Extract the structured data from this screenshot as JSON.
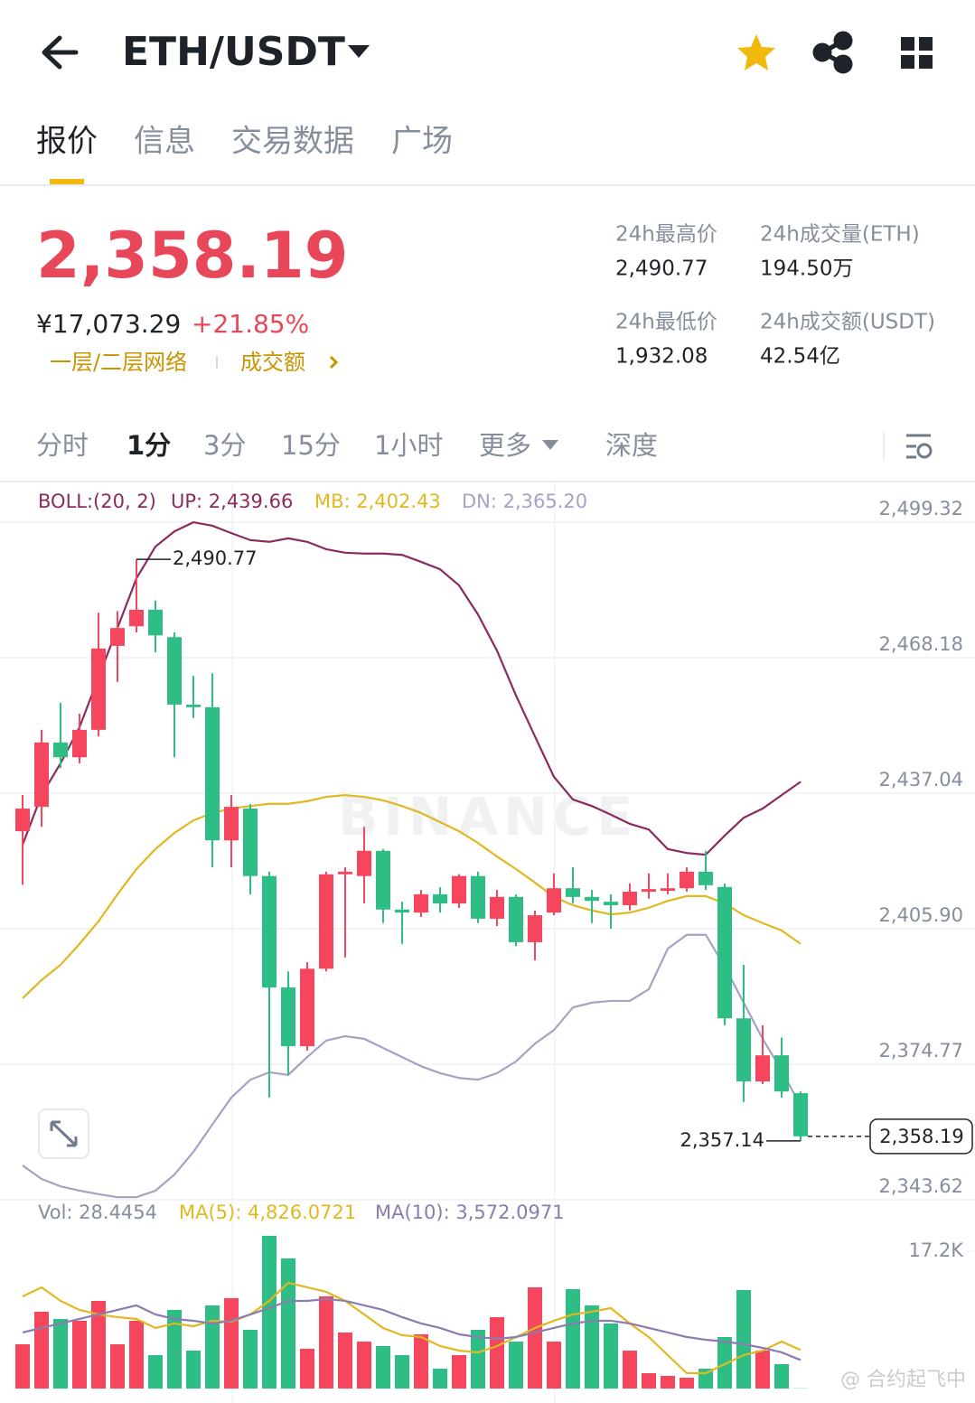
{
  "header": {
    "symbol": "ETH/USDT"
  },
  "tabs": {
    "items": [
      "报价",
      "信息",
      "交易数据",
      "广场"
    ],
    "active": 0
  },
  "quote": {
    "price": "2,358.19",
    "cny": "¥17,073.29",
    "change": "+21.85%",
    "links": [
      "一层/二层网络",
      "成交额"
    ]
  },
  "stats": [
    {
      "label": "24h最高价",
      "value": "2,490.77"
    },
    {
      "label": "24h成交量(ETH)",
      "value": "194.50万"
    },
    {
      "label": "24h最低价",
      "value": "1,932.08"
    },
    {
      "label": "24h成交额(USDT)",
      "value": "42.54亿"
    }
  ],
  "intervals": {
    "items": [
      "分时",
      "1分",
      "3分",
      "15分",
      "1小时",
      "更多",
      "深度"
    ],
    "active": 1
  },
  "watermark": "@ 合约起飞中",
  "chart_data": {
    "type": "candlestick",
    "indicator": "BOLL:(20, 2)",
    "brand": "BINANCE",
    "up_color": "#f6465d",
    "down_color": "#2ebd85",
    "open": [
      2428.3,
      2433.9,
      2448.7,
      2445.3,
      2451.6,
      2470.9,
      2475.4,
      2479.2,
      2472.9,
      2457.4,
      2456.8,
      2426.2,
      2433.5,
      2418.0,
      2392.4,
      2378.9,
      2396.7,
      2418.4,
      2418.0,
      2423.8,
      2410.3,
      2409.6,
      2413.8,
      2411.7,
      2418.0,
      2408.2,
      2413.2,
      2402.8,
      2409.6,
      2415.2,
      2413.2,
      2412.1,
      2411.3,
      2414.4,
      2414.6,
      2415.2,
      2419.0,
      2415.5,
      2385.3,
      2370.8,
      2376.8,
      2368.1
    ],
    "high": [
      2436.6,
      2451.6,
      2457.8,
      2455.3,
      2478.5,
      2478.9,
      2490.77,
      2481.3,
      2474.0,
      2464.0,
      2464.6,
      2436.6,
      2434.5,
      2419.0,
      2396.1,
      2398.2,
      2419.0,
      2420.0,
      2429.3,
      2424.2,
      2412.1,
      2414.8,
      2415.4,
      2418.4,
      2419.0,
      2414.8,
      2413.8,
      2410.1,
      2418.6,
      2420.0,
      2414.8,
      2413.8,
      2416.3,
      2418.6,
      2418.6,
      2420.0,
      2423.8,
      2416.3,
      2397.6,
      2383.7,
      2380.9,
      2368.5
    ],
    "low": [
      2416.0,
      2429.3,
      2442.8,
      2443.9,
      2450.1,
      2462.6,
      2474.0,
      2469.4,
      2445.3,
      2454.3,
      2420.0,
      2420.0,
      2413.8,
      2367.1,
      2372.3,
      2377.9,
      2396.1,
      2399.3,
      2411.7,
      2407.2,
      2402.4,
      2408.6,
      2409.6,
      2410.7,
      2407.2,
      2406.5,
      2401.9,
      2398.6,
      2409.0,
      2411.7,
      2407.2,
      2405.9,
      2410.1,
      2412.8,
      2413.8,
      2414.4,
      2414.8,
      2383.7,
      2366.1,
      2370.2,
      2367.1,
      2357.14
    ],
    "close": [
      2433.5,
      2448.7,
      2445.3,
      2451.6,
      2470.3,
      2475.0,
      2479.2,
      2473.3,
      2457.4,
      2456.8,
      2426.2,
      2433.9,
      2418.0,
      2392.4,
      2378.9,
      2396.7,
      2418.4,
      2419.0,
      2423.8,
      2410.3,
      2409.6,
      2413.8,
      2411.7,
      2418.0,
      2408.2,
      2413.2,
      2402.8,
      2409.0,
      2415.2,
      2413.2,
      2412.3,
      2411.3,
      2414.4,
      2415.0,
      2415.2,
      2419.0,
      2415.9,
      2385.3,
      2370.8,
      2376.8,
      2368.5,
      2358.19
    ],
    "series": [
      {
        "name": "UP: 2,439.66",
        "color": "#8b2a5e",
        "values": [
          2425.2,
          2436.6,
          2443.9,
          2452.2,
          2463.6,
          2475.0,
          2486.4,
          2493.7,
          2497.2,
          2499.3,
          2498.5,
          2496.8,
          2495.2,
          2494.8,
          2495.6,
          2494.8,
          2493.1,
          2492.3,
          2492.1,
          2492.1,
          2491.8,
          2490.2,
          2488.5,
          2484.8,
          2478.1,
          2469.8,
          2459.5,
          2450.1,
          2440.8,
          2435.6,
          2434.1,
          2432.1,
          2430.0,
          2428.7,
          2424.2,
          2423.3,
          2422.9,
          2427.3,
          2431.4,
          2433.5,
          2436.6,
          2439.66
        ]
      },
      {
        "name": "MB: 2,402.43",
        "color": "#e0b820",
        "values": [
          2389.9,
          2394.1,
          2397.6,
          2402.4,
          2407.6,
          2413.8,
          2419.6,
          2424.2,
          2427.9,
          2430.8,
          2432.5,
          2433.5,
          2434.1,
          2434.6,
          2434.6,
          2435.2,
          2436.2,
          2436.6,
          2436.2,
          2435.4,
          2434.1,
          2432.5,
          2430.4,
          2428.3,
          2425.6,
          2422.5,
          2419.6,
          2416.5,
          2413.2,
          2411.3,
          2410.1,
          2409.2,
          2409.6,
          2410.7,
          2412.3,
          2413.4,
          2413.4,
          2411.7,
          2409.0,
          2407.2,
          2405.5,
          2402.43
        ]
      },
      {
        "name": "DN: 2,365.20",
        "color": "#a3a3c2",
        "values": [
          2351.5,
          2348.4,
          2346.7,
          2345.7,
          2344.9,
          2344.2,
          2344.2,
          2345.7,
          2349.4,
          2354.6,
          2360.9,
          2367.1,
          2371.2,
          2372.9,
          2372.3,
          2376.4,
          2380.2,
          2381.2,
          2380.6,
          2378.5,
          2376.4,
          2374.3,
          2372.7,
          2371.6,
          2371.2,
          2372.7,
          2375.4,
          2379.5,
          2382.6,
          2387.8,
          2388.9,
          2389.3,
          2389.3,
          2392.0,
          2401.3,
          2404.5,
          2404.5,
          2397.2,
          2388.9,
          2380.6,
          2373.3,
          2365.2
        ]
      }
    ],
    "ylim": [
      2343.62,
      2499.32
    ],
    "yticks": [
      {
        "value": 2499.32,
        "label": "2,499.32"
      },
      {
        "value": 2468.18,
        "label": "2,468.18"
      },
      {
        "value": 2437.04,
        "label": "2,437.04"
      },
      {
        "value": 2405.9,
        "label": "2,405.90"
      },
      {
        "value": 2374.77,
        "label": "2,374.77"
      },
      {
        "value": 2343.62,
        "label": "2,343.62"
      }
    ],
    "grid": true,
    "annotations": [
      {
        "value": 2490.77,
        "label": "2,490.77"
      },
      {
        "value": 2357.14,
        "label": "2,357.14"
      }
    ],
    "last_price": {
      "value": 2358.19,
      "label": "2,358.19"
    },
    "volume": {
      "name": "Vol: 28.4454",
      "values": [
        5547,
        9622,
        8716,
        8490,
        10980,
        5547,
        8490,
        4188,
        9848,
        4754,
        10414,
        11320,
        7358,
        19131,
        16301,
        4981,
        11546,
        7018,
        5886,
        5320,
        4188,
        6792,
        2490,
        4188,
        7358,
        8943,
        5886,
        12678,
        5886,
        12452,
        10414,
        8150,
        4754,
        1924,
        1585,
        1358,
        2490,
        6452,
        12339,
        4754,
        3056,
        28.4454
      ],
      "series": [
        {
          "name": "MA(5): 4,826.0721",
          "color": "#e0b820",
          "values": [
            11546,
            12678,
            10980,
            9848,
            9282,
            8943,
            8716,
            7584,
            8150,
            7811,
            8490,
            8377,
            9282,
            10980,
            13244,
            12678,
            12112,
            10980,
            9282,
            7584,
            6679,
            6452,
            5320,
            4754,
            4528,
            5320,
            6452,
            7584,
            8490,
            9282,
            9622,
            10075,
            8150,
            6452,
            4188,
            1924,
            1924,
            3056,
            4188,
            4754,
            5886,
            4826.0721
          ]
        },
        {
          "name": "MA(10): 3,572.0971",
          "color": "#8c7bb0",
          "values": [
            7018,
            7584,
            8150,
            8716,
            9282,
            9848,
            10414,
            9282,
            8716,
            8490,
            8150,
            8490,
            9282,
            10075,
            10980,
            10980,
            11207,
            10980,
            10414,
            9848,
            8943,
            8150,
            7584,
            6792,
            6452,
            6226,
            6452,
            7018,
            7584,
            8150,
            8490,
            8490,
            8150,
            7584,
            7018,
            6452,
            6113,
            5886,
            5547,
            5094,
            4528,
            3572.0971
          ]
        }
      ],
      "ylim": [
        0,
        17200
      ],
      "yticks": [
        {
          "value": 17200,
          "label": "17.2K"
        }
      ]
    }
  }
}
